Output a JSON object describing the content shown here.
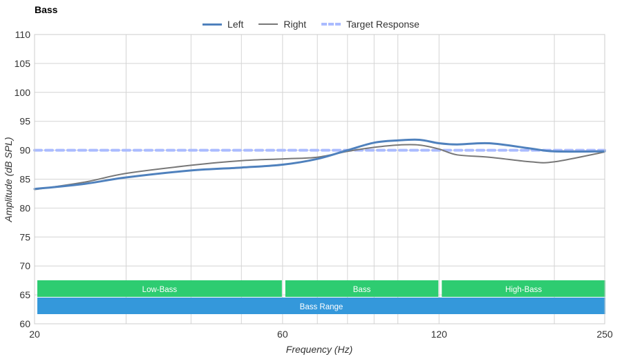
{
  "chart_data": {
    "type": "line",
    "title": "Bass",
    "xlabel": "Frequency (Hz)",
    "ylabel": "Amplitude (dB SPL)",
    "x_scale": "log",
    "xlim": [
      20,
      250
    ],
    "ylim": [
      60,
      110
    ],
    "x_ticks": [
      20,
      60,
      120,
      250
    ],
    "y_ticks": [
      60,
      65,
      70,
      75,
      80,
      85,
      90,
      95,
      100,
      105,
      110
    ],
    "grid": true,
    "legend_position": "top-center",
    "series": [
      {
        "name": "Left",
        "color": "#4f81bd",
        "style": "solid-thick",
        "x": [
          20,
          25,
          30,
          40,
          50,
          60,
          70,
          80,
          90,
          100,
          110,
          120,
          130,
          150,
          180,
          200,
          250
        ],
        "y": [
          83.3,
          84.2,
          85.3,
          86.5,
          87.0,
          87.5,
          88.5,
          90.0,
          91.3,
          91.7,
          91.8,
          91.2,
          91.0,
          91.2,
          90.3,
          89.8,
          89.8
        ]
      },
      {
        "name": "Right",
        "color": "#777777",
        "style": "solid-thin",
        "x": [
          20,
          25,
          30,
          40,
          50,
          60,
          70,
          80,
          90,
          100,
          110,
          120,
          130,
          150,
          180,
          200,
          250
        ],
        "y": [
          83.2,
          84.5,
          86.0,
          87.4,
          88.2,
          88.5,
          88.8,
          89.8,
          90.5,
          90.9,
          90.9,
          90.2,
          89.2,
          88.8,
          88.0,
          88.0,
          89.7
        ]
      },
      {
        "name": "Target Response",
        "color": "#aabbff",
        "style": "dashed",
        "x": [
          20,
          250
        ],
        "y": [
          90,
          90
        ]
      }
    ],
    "bands": [
      {
        "label": "Low-Bass",
        "x": [
          20,
          60
        ],
        "color": "#2ecc71",
        "row": 0
      },
      {
        "label": "Bass",
        "x": [
          60,
          120
        ],
        "color": "#2ecc71",
        "row": 0
      },
      {
        "label": "High-Bass",
        "x": [
          120,
          250
        ],
        "color": "#2ecc71",
        "row": 0
      },
      {
        "label": "Bass Range",
        "x": [
          20,
          250
        ],
        "color": "#3498db",
        "row": 1
      }
    ]
  }
}
